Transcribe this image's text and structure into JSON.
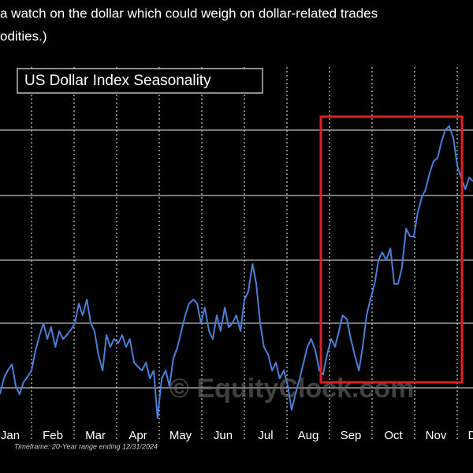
{
  "header": {
    "lines": [
      "a watch on the dollar which could weigh on dollar-related trades",
      "odities.)"
    ]
  },
  "chart_data": {
    "type": "line",
    "title": "US Dollar Index Seasonality",
    "watermark": "© EquityClock.com",
    "footnote": "Timeframe: 20-Year range ending 12/31/2024",
    "months": [
      "Jan",
      "Feb",
      "Mar",
      "Apr",
      "May",
      "Jun",
      "Jul",
      "Aug",
      "Sep",
      "Oct",
      "Nov",
      "Dec"
    ],
    "xlim": [
      0,
      12
    ],
    "xticks": [
      1,
      2,
      3,
      4,
      5,
      6,
      7,
      8,
      9,
      10,
      11
    ],
    "ylim": [
      0,
      490
    ],
    "yticks": [
      83,
      165,
      245,
      327,
      410
    ],
    "grid": true,
    "x": [
      0.26,
      0.35,
      0.44,
      0.54,
      0.63,
      0.72,
      0.81,
      0.91,
      1.0,
      1.09,
      1.19,
      1.28,
      1.37,
      1.46,
      1.56,
      1.65,
      1.74,
      1.83,
      1.93,
      2.02,
      2.11,
      2.2,
      2.3,
      2.39,
      2.48,
      2.57,
      2.67,
      2.76,
      2.85,
      2.94,
      3.04,
      3.13,
      3.22,
      3.31,
      3.41,
      3.5,
      3.59,
      3.69,
      3.78,
      3.87,
      3.96,
      4.06,
      4.15,
      4.24,
      4.33,
      4.43,
      4.52,
      4.61,
      4.7,
      4.8,
      4.89,
      4.98,
      5.07,
      5.17,
      5.26,
      5.35,
      5.44,
      5.54,
      5.63,
      5.72,
      5.81,
      5.91,
      6.0,
      6.09,
      6.19,
      6.28,
      6.37,
      6.46,
      6.56,
      6.65,
      6.74,
      6.83,
      6.93,
      7.02,
      7.11,
      7.2,
      7.3,
      7.39,
      7.48,
      7.57,
      7.67,
      7.76,
      7.85,
      7.94,
      8.04,
      8.13,
      8.22,
      8.31,
      8.41,
      8.5,
      8.59,
      8.69,
      8.78,
      8.87,
      8.96,
      9.06,
      9.15,
      9.24,
      9.33,
      9.43,
      9.52,
      9.61,
      9.7,
      9.8,
      9.89,
      9.98,
      10.07,
      10.17,
      10.26,
      10.35,
      10.44,
      10.54,
      10.63,
      10.72,
      10.81,
      10.91,
      11.0,
      11.09,
      11.19,
      11.28,
      11.37
    ],
    "series": [
      {
        "color": "#4a7fd6",
        "values": [
          75,
          95,
          105,
          113,
          85,
          75,
          90,
          97,
          105,
          130,
          150,
          165,
          145,
          160,
          135,
          155,
          145,
          150,
          157,
          165,
          190,
          175,
          195,
          165,
          155,
          125,
          105,
          150,
          135,
          145,
          140,
          150,
          135,
          145,
          115,
          110,
          105,
          115,
          95,
          105,
          45,
          95,
          105,
          85,
          120,
          135,
          155,
          175,
          190,
          195,
          190,
          165,
          185,
          155,
          145,
          175,
          155,
          185,
          160,
          165,
          175,
          155,
          195,
          205,
          240,
          215,
          165,
          135,
          125,
          105,
          115,
          95,
          105,
          85,
          55,
          75,
          95,
          115,
          135,
          145,
          130,
          105,
          100,
          125,
          145,
          135,
          155,
          175,
          170,
          145,
          125,
          105,
          135,
          175,
          195,
          215,
          245,
          255,
          245,
          260,
          215,
          215,
          235,
          285,
          275,
          275,
          305,
          325,
          335,
          355,
          370,
          375,
          395,
          410,
          415,
          400,
          365,
          350,
          335,
          350,
          345
        ]
      }
    ]
  }
}
